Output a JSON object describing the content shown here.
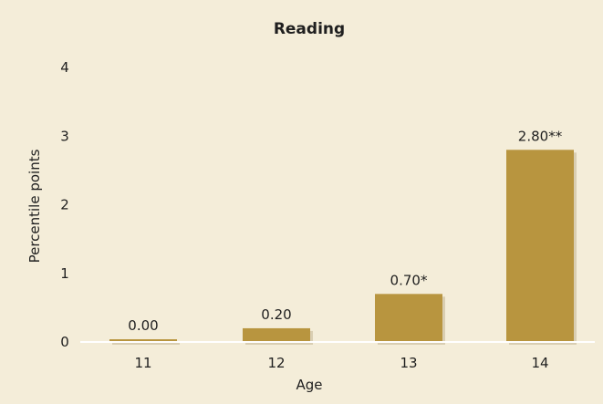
{
  "chart_data": {
    "type": "bar",
    "title": "Reading",
    "xlabel": "Age",
    "ylabel": "Percentile points",
    "categories": [
      "11",
      "12",
      "13",
      "14"
    ],
    "values": [
      0.0,
      0.2,
      0.7,
      2.8
    ],
    "data_labels": [
      "0.00",
      "0.20",
      "0.70*",
      "2.80**"
    ],
    "yticks": [
      "0",
      "1",
      "2",
      "3",
      "4"
    ],
    "ylim": [
      0,
      4
    ],
    "grid": false,
    "legend": "none",
    "bar_color": "#b8953f",
    "background_color": "#f4edd9"
  }
}
